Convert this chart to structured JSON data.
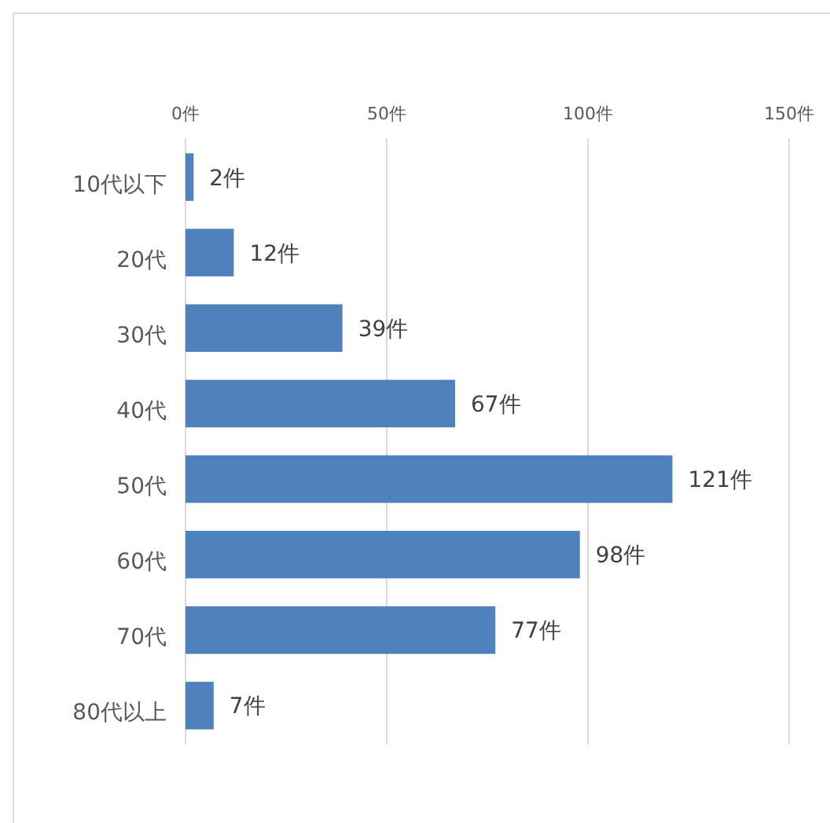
{
  "chart_data": {
    "type": "bar",
    "orientation": "horizontal",
    "categories": [
      "10代以下",
      "20代",
      "30代",
      "40代",
      "50代",
      "60代",
      "70代",
      "80代以上"
    ],
    "values": [
      2,
      12,
      39,
      67,
      121,
      98,
      77,
      7
    ],
    "value_labels": [
      "2件",
      "12件",
      "39件",
      "67件",
      "121件",
      "98件",
      "77件",
      "7件"
    ],
    "color": "#4f81bd",
    "xlim": [
      0,
      150
    ],
    "xticks": [
      {
        "value": 0,
        "label": "0件"
      },
      {
        "value": 50,
        "label": "50件"
      },
      {
        "value": 100,
        "label": "100件"
      },
      {
        "value": 150,
        "label": "150件"
      }
    ],
    "grid": "x"
  }
}
